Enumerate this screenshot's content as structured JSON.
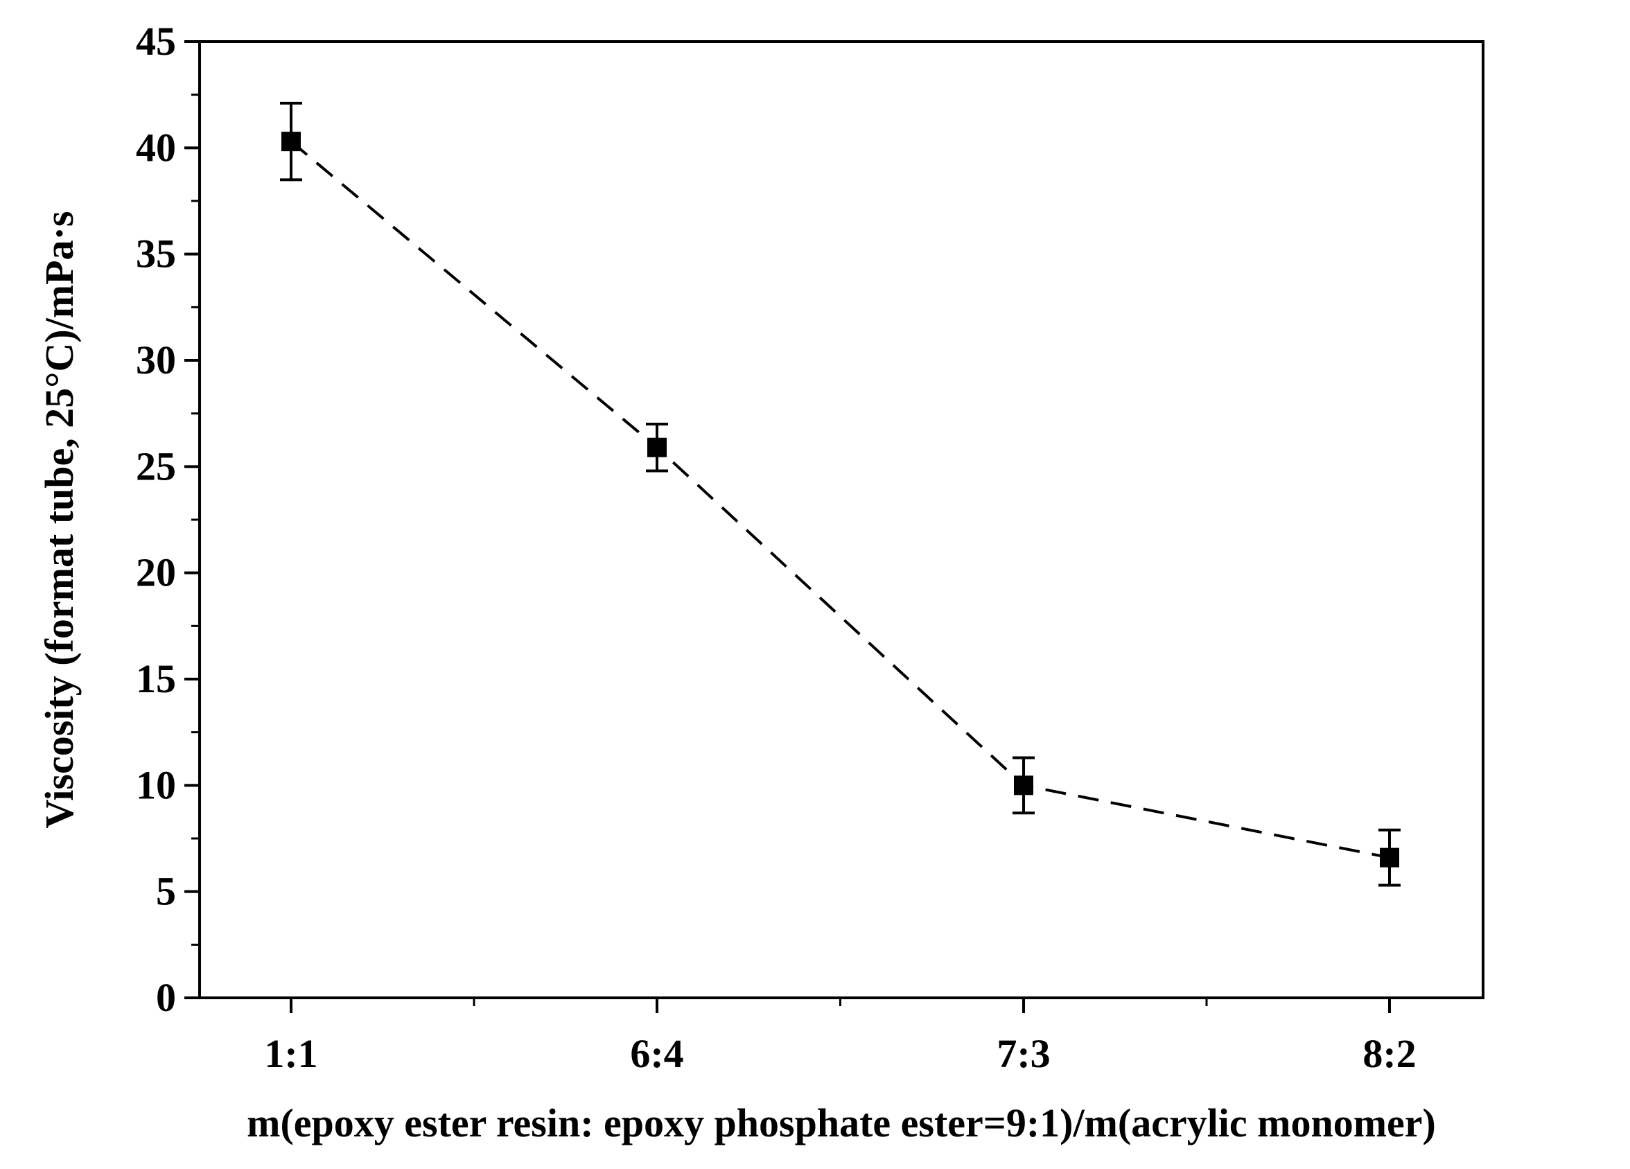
{
  "chart_data": {
    "type": "line",
    "title": "",
    "xlabel": "m(epoxy ester resin: epoxy phosphate ester=9:1)/m(acrylic monomer)",
    "ylabel": "Viscosity (format tube, 25°C)/mPa·s",
    "categories": [
      "1:1",
      "6:4",
      "7:3",
      "8:2"
    ],
    "series": [
      {
        "values": [
          40.3,
          25.9,
          10.0,
          6.6
        ],
        "error": [
          1.8,
          1.1,
          1.3,
          1.3
        ],
        "color": "#000000",
        "line_style": "dashed",
        "marker": "square"
      }
    ],
    "ylim": [
      0,
      45
    ],
    "yticks": [
      0,
      5,
      10,
      15,
      20,
      25,
      30,
      35,
      40,
      45
    ],
    "grid": false,
    "legend": "none"
  }
}
